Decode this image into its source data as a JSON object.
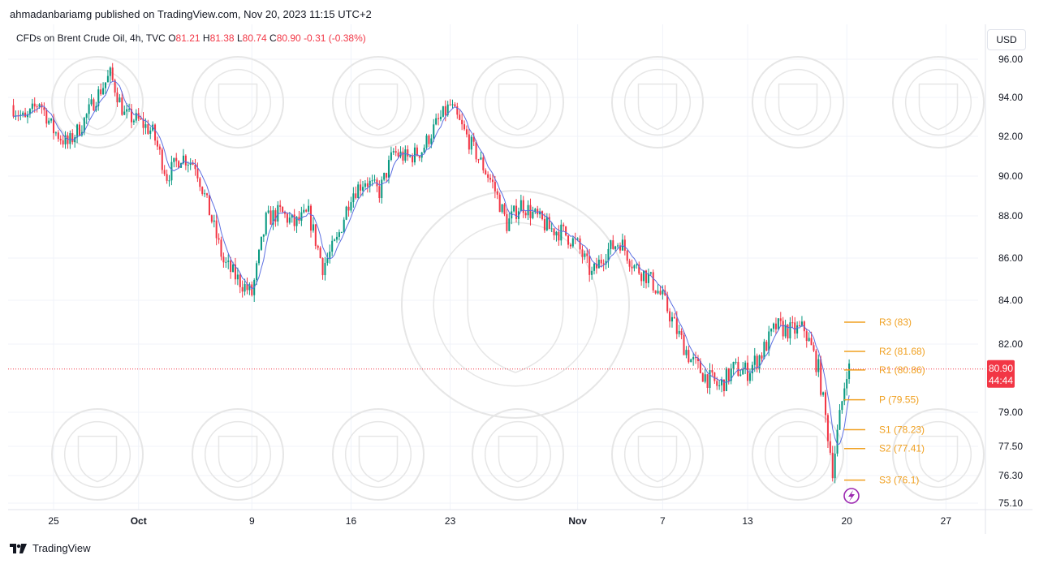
{
  "header": {
    "publisher_line": "ahmadanbariamg published on TradingView.com, Nov 20, 2023 11:15 UTC+2"
  },
  "legend": {
    "symbol": "CFDs on Brent Crude Oil, 4h, TVC",
    "open_key": "O",
    "open": "81.21",
    "high_key": "H",
    "high": "81.38",
    "low_key": "L",
    "low": "80.74",
    "close_key": "C",
    "close": "80.90",
    "change": "-0.31 (-0.38%)"
  },
  "toolbar": {
    "currency_label": "USD"
  },
  "price_badge": {
    "price": "80.90",
    "countdown": "44:44"
  },
  "footer": {
    "brand": "TradingView"
  },
  "colors": {
    "up": "#089981",
    "down": "#f23645",
    "ma": "#5b6ee1",
    "pivot": "#f0a020",
    "grid": "#f0f3fa",
    "axis_text": "#131722",
    "watermark": "#e6e6e6"
  },
  "chart_data": {
    "type": "candlestick",
    "timeframe": "4h",
    "y_ticks": [
      "96.00",
      "94.00",
      "92.00",
      "90.00",
      "88.00",
      "86.00",
      "84.00",
      "82.00",
      "79.00",
      "77.50",
      "76.30",
      "75.10"
    ],
    "x_ticks": [
      {
        "label": "25",
        "day": 0,
        "bold": false
      },
      {
        "label": "Oct",
        "day": 6,
        "bold": true
      },
      {
        "label": "9",
        "day": 14,
        "bold": false
      },
      {
        "label": "16",
        "day": 21,
        "bold": false
      },
      {
        "label": "23",
        "day": 28,
        "bold": false
      },
      {
        "label": "Nov",
        "day": 37,
        "bold": true
      },
      {
        "label": "7",
        "day": 43,
        "bold": false
      },
      {
        "label": "13",
        "day": 49,
        "bold": false
      },
      {
        "label": "20",
        "day": 56,
        "bold": false
      },
      {
        "label": "27",
        "day": 63,
        "bold": false
      }
    ],
    "last_close": 80.9,
    "pivots": [
      {
        "label": "R3 (83)",
        "value": 83.0
      },
      {
        "label": "R2 (81.68)",
        "value": 81.68
      },
      {
        "label": "R1 (80.86)",
        "value": 80.86
      },
      {
        "label": "P (79.55)",
        "value": 79.55
      },
      {
        "label": "S1 (78.23)",
        "value": 78.23
      },
      {
        "label": "S2 (77.41)",
        "value": 77.41
      },
      {
        "label": "S3 (76.1)",
        "value": 76.1
      }
    ],
    "price_path": [
      [
        -3,
        93.6
      ],
      [
        -2,
        92.8
      ],
      [
        -1,
        93.8
      ],
      [
        0,
        92.3
      ],
      [
        1,
        91.6
      ],
      [
        2,
        92.6
      ],
      [
        3,
        94.0
      ],
      [
        4,
        95.2
      ],
      [
        5,
        93.1
      ],
      [
        6,
        92.8
      ],
      [
        7,
        92.2
      ],
      [
        8,
        90.0
      ],
      [
        9,
        91.0
      ],
      [
        10,
        90.6
      ],
      [
        11,
        88.2
      ],
      [
        12,
        85.8
      ],
      [
        13,
        85.0
      ],
      [
        14,
        84.3
      ],
      [
        15,
        87.8
      ],
      [
        16,
        88.2
      ],
      [
        17,
        87.6
      ],
      [
        18,
        88.1
      ],
      [
        19,
        85.6
      ],
      [
        20,
        86.8
      ],
      [
        21,
        89.1
      ],
      [
        22,
        89.8
      ],
      [
        23,
        89.2
      ],
      [
        24,
        91.2
      ],
      [
        25,
        90.9
      ],
      [
        26,
        91.3
      ],
      [
        27,
        92.6
      ],
      [
        28,
        93.6
      ],
      [
        29,
        92.2
      ],
      [
        30,
        90.9
      ],
      [
        31,
        89.6
      ],
      [
        32,
        87.6
      ],
      [
        33,
        88.6
      ],
      [
        34,
        88.0
      ],
      [
        35,
        87.4
      ],
      [
        36,
        87.2
      ],
      [
        37,
        86.6
      ],
      [
        38,
        85.2
      ],
      [
        39,
        86.3
      ],
      [
        40,
        86.8
      ],
      [
        41,
        85.6
      ],
      [
        42,
        85.1
      ],
      [
        43,
        84.1
      ],
      [
        44,
        82.6
      ],
      [
        45,
        81.3
      ],
      [
        46,
        80.6
      ],
      [
        47,
        80.1
      ],
      [
        48,
        80.9
      ],
      [
        49,
        80.8
      ],
      [
        50,
        81.6
      ],
      [
        51,
        82.8
      ],
      [
        52,
        82.6
      ],
      [
        53,
        82.7
      ],
      [
        54,
        80.9
      ],
      [
        55,
        76.6
      ],
      [
        56,
        80.9
      ]
    ]
  }
}
